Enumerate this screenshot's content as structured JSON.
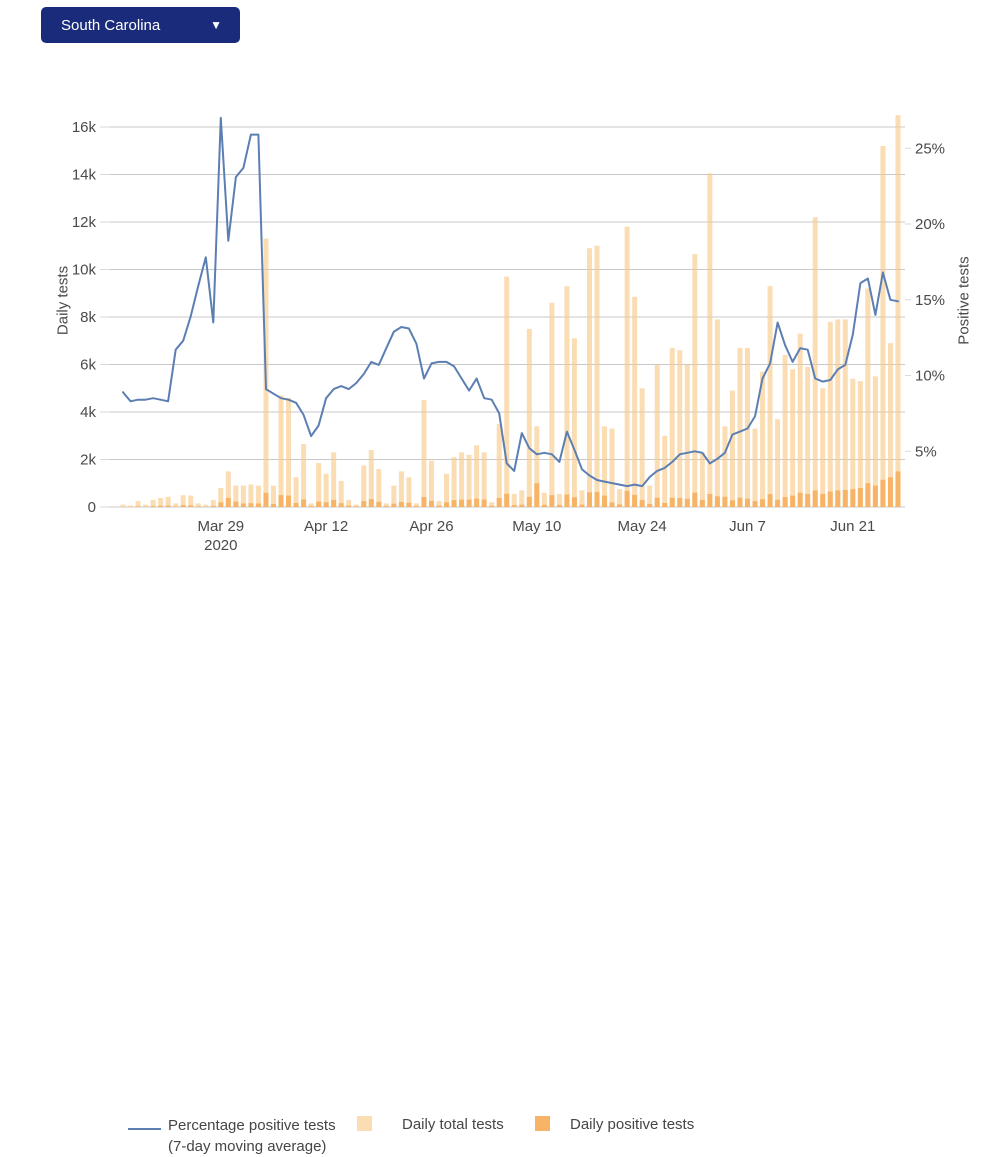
{
  "dropdown": {
    "label": "South Carolina",
    "caret": "▼",
    "bg_color": "#1a2b7c"
  },
  "legend": {
    "line_label_1": "Percentage positive tests",
    "line_label_2": "(7-day moving average)",
    "total_label": "Daily total tests",
    "positive_label": "Daily positive tests"
  },
  "chart_data": {
    "type": "bar+line dual-axis",
    "title": "",
    "x_start_date": "Mar 16 2020",
    "x_end_date": "Jun 27 2020",
    "x_tick_labels": [
      {
        "index": 13,
        "label": "Mar 29",
        "sublabel": "2020"
      },
      {
        "index": 27,
        "label": "Apr 12",
        "sublabel": ""
      },
      {
        "index": 41,
        "label": "Apr 26",
        "sublabel": ""
      },
      {
        "index": 55,
        "label": "May 10",
        "sublabel": ""
      },
      {
        "index": 69,
        "label": "May 24",
        "sublabel": ""
      },
      {
        "index": 83,
        "label": "Jun 7",
        "sublabel": ""
      },
      {
        "index": 97,
        "label": "Jun 21",
        "sublabel": ""
      }
    ],
    "left_axis": {
      "title": "Daily tests",
      "ticks": [
        0,
        2000,
        4000,
        6000,
        8000,
        10000,
        12000,
        14000,
        16000
      ],
      "tick_labels": [
        "0",
        "2k",
        "4k",
        "6k",
        "8k",
        "10k",
        "12k",
        "14k",
        "16k"
      ],
      "range": [
        0,
        16000
      ]
    },
    "right_axis": {
      "title": "Positive tests",
      "ticks": [
        5,
        10,
        15,
        20,
        25
      ],
      "tick_labels": [
        "5%",
        "10%",
        "15%",
        "20%",
        "25%"
      ],
      "range": [
        0,
        25
      ]
    },
    "grid": "horizontal",
    "legend_position": "bottom",
    "colors": {
      "total_bar": "#fbddb4",
      "positive_bar": "#f8b466",
      "line": "#5c7fb3",
      "gridline": "#dadada",
      "zero_line": "#c9c9c9",
      "tick_text": "#4a4a4a"
    },
    "series": [
      {
        "name": "Daily total tests",
        "type": "bar",
        "axis": "left",
        "values": [
          100,
          60,
          250,
          100,
          300,
          380,
          430,
          150,
          500,
          480,
          150,
          100,
          300,
          800,
          1500,
          900,
          900,
          950,
          900,
          11300,
          900,
          4700,
          4600,
          1250,
          2650,
          150,
          1850,
          1400,
          2300,
          1100,
          300,
          100,
          1750,
          2400,
          1600,
          150,
          900,
          1500,
          1250,
          150,
          4500,
          1950,
          250,
          1400,
          2100,
          2300,
          2200,
          2600,
          2300,
          200,
          3500,
          9700,
          550,
          700,
          7500,
          3400,
          600,
          8600,
          550,
          9300,
          7100,
          700,
          10900,
          11000,
          3400,
          3300,
          750,
          11800,
          8850,
          5000,
          900,
          6000,
          3000,
          6700,
          6600,
          6000,
          10650,
          2300,
          14050,
          7900,
          3400,
          4900,
          6700,
          6700,
          3300,
          5700,
          9300,
          3700,
          6400,
          5800,
          7300,
          5900,
          12200,
          5000,
          7800,
          7900,
          7900,
          5400,
          5300,
          9200,
          5500,
          15200,
          6900,
          16500
        ]
      },
      {
        "name": "Daily positive tests",
        "type": "bar",
        "axis": "left",
        "values": [
          10,
          10,
          30,
          15,
          40,
          50,
          60,
          20,
          80,
          70,
          25,
          15,
          45,
          200,
          380,
          230,
          150,
          160,
          150,
          600,
          130,
          500,
          480,
          170,
          320,
          40,
          230,
          200,
          300,
          160,
          60,
          30,
          250,
          330,
          220,
          40,
          140,
          210,
          180,
          40,
          420,
          260,
          60,
          200,
          290,
          310,
          310,
          350,
          320,
          50,
          380,
          560,
          80,
          100,
          430,
          1000,
          90,
          500,
          90,
          530,
          410,
          100,
          620,
          630,
          480,
          190,
          110,
          680,
          510,
          290,
          130,
          390,
          170,
          390,
          380,
          340,
          610,
          300,
          550,
          450,
          430,
          280,
          390,
          350,
          250,
          330,
          540,
          300,
          420,
          480,
          600,
          550,
          700,
          550,
          650,
          700,
          720,
          750,
          800,
          1000,
          900,
          1150,
          1250,
          1500
        ]
      },
      {
        "name": "Percentage positive tests (7-day moving average)",
        "type": "line",
        "axis": "right",
        "values": [
          8.9,
          8.3,
          8.4,
          8.4,
          8.5,
          8.4,
          8.3,
          11.7,
          12.3,
          13.9,
          15.9,
          17.8,
          13.5,
          27.0,
          18.9,
          23.1,
          23.7,
          25.9,
          25.9,
          9.1,
          8.8,
          8.5,
          8.4,
          8.2,
          7.4,
          6.0,
          6.7,
          8.5,
          9.1,
          9.3,
          9.1,
          9.5,
          10.1,
          10.9,
          10.7,
          11.8,
          12.9,
          13.2,
          13.1,
          12.1,
          9.8,
          10.8,
          10.9,
          10.9,
          10.6,
          9.8,
          9.0,
          9.8,
          8.5,
          8.4,
          7.5,
          4.2,
          3.7,
          6.2,
          5.2,
          4.8,
          4.9,
          4.8,
          4.3,
          6.3,
          5.1,
          3.8,
          3.4,
          3.1,
          3.0,
          2.9,
          2.8,
          2.7,
          2.8,
          2.7,
          3.3,
          3.7,
          3.9,
          4.3,
          4.8,
          4.9,
          5.0,
          4.9,
          4.2,
          4.5,
          4.9,
          6.1,
          6.3,
          6.5,
          7.3,
          9.8,
          10.8,
          13.5,
          12.0,
          10.9,
          11.8,
          11.7,
          9.8,
          9.6,
          9.7,
          10.4,
          10.7,
          12.7,
          16.1,
          16.4,
          14.0,
          16.8,
          15.0,
          14.9
        ]
      }
    ]
  }
}
